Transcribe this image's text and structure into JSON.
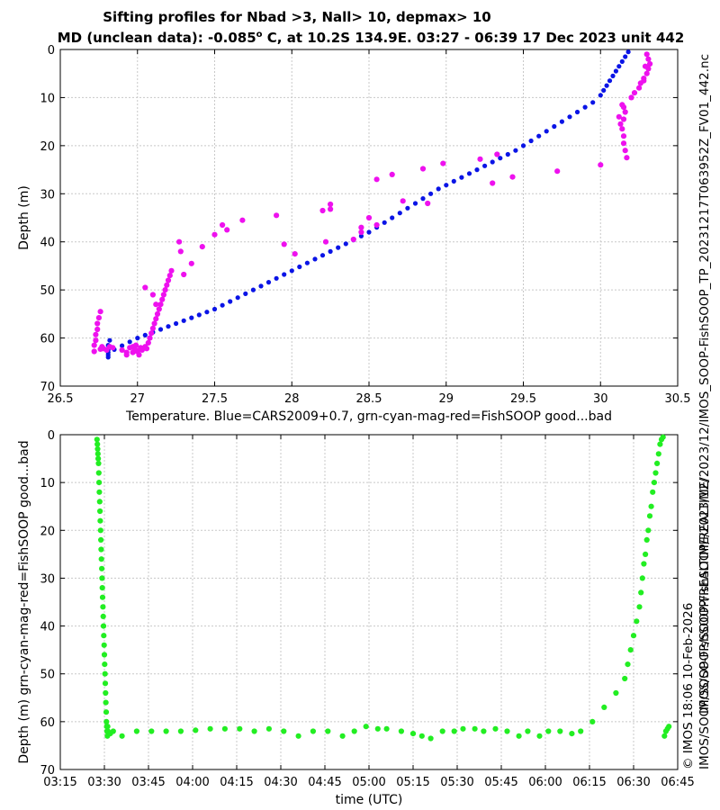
{
  "title_line1": "Sifting profiles for Nbad >3, Nall> 10, depmax> 10",
  "title_line2_prefix": "MD (unclean data): -0.085",
  "title_line2_superscript": "o",
  "title_line2_suffix": " C, at 10.2S 134.9E. 03:27 - 06:39 17 Dec 2023 unit 442",
  "side_label_file": "IMOS_SOOP-FishSOOP_TP_20231217T063952Z_FV01_442.nc",
  "side_label_path": "IMOS/SOOP/SOOP-FishSOOP/REALTIME/2023/12/",
  "side_label_copyright": "© IMOS 18:06 10-Feb-2026",
  "side_label_path2": "IMOS/SOOP/SOOP-FishSOOP/REALTIME/2023/12/",
  "colors": {
    "blue": "#0a14e6",
    "magenta": "#ee11ee",
    "green": "#22ee22"
  },
  "chart_data": [
    {
      "type": "scatter",
      "xlabel": "Temperature. Blue=CARS2009+0.7, grn-cyan-mag-red=FishSOOP good...bad",
      "ylabel": "Depth (m)",
      "xlim": [
        26.5,
        30.5
      ],
      "ylim": [
        70,
        0
      ],
      "x_ticks": [
        "26.5",
        "27",
        "27.5",
        "28",
        "28.5",
        "29",
        "29.5",
        "30",
        "30.5"
      ],
      "y_ticks": [
        "0",
        "10",
        "20",
        "30",
        "40",
        "50",
        "60",
        "70"
      ],
      "grid": true,
      "series": [
        {
          "name": "CARS2009+0.7",
          "color": "blue",
          "x": [
            30.18,
            30.16,
            30.14,
            30.12,
            30.1,
            30.08,
            30.06,
            30.04,
            30.02,
            30.0,
            29.95,
            29.9,
            29.85,
            29.8,
            29.75,
            29.7,
            29.65,
            29.6,
            29.55,
            29.5,
            29.45,
            29.4,
            29.35,
            29.3,
            29.25,
            29.2,
            29.15,
            29.1,
            29.05,
            29.0,
            28.95,
            28.9,
            28.85,
            28.8,
            28.75,
            28.7,
            28.65,
            28.6,
            28.55,
            28.5,
            28.45,
            28.4,
            28.35,
            28.3,
            28.25,
            28.2,
            28.15,
            28.1,
            28.05,
            28.0,
            27.95,
            27.9,
            27.85,
            27.8,
            27.75,
            27.7,
            27.65,
            27.6,
            27.55,
            27.5,
            27.45,
            27.4,
            27.35,
            27.3,
            27.25,
            27.2,
            27.15,
            27.1,
            27.05,
            27.0,
            26.95,
            26.9,
            26.85,
            26.82,
            26.81,
            26.81,
            26.81,
            26.81,
            26.81
          ],
          "y": [
            0.5,
            1.5,
            2.5,
            3.5,
            4.5,
            5.5,
            6.5,
            7.5,
            8.5,
            9.5,
            11.0,
            12.0,
            13.0,
            14.0,
            15.0,
            16.0,
            17.0,
            18.0,
            19.0,
            20.0,
            21.0,
            21.8,
            22.6,
            23.4,
            24.2,
            25.0,
            25.8,
            26.6,
            27.4,
            28.2,
            29.0,
            30.0,
            31.0,
            32.0,
            33.0,
            34.0,
            35.0,
            36.0,
            37.0,
            38.0,
            38.8,
            39.6,
            40.4,
            41.2,
            42.0,
            42.8,
            43.6,
            44.4,
            45.2,
            46.0,
            46.8,
            47.6,
            48.4,
            49.2,
            50.0,
            50.8,
            51.6,
            52.4,
            53.2,
            54.0,
            54.6,
            55.2,
            55.8,
            56.4,
            57.0,
            57.6,
            58.2,
            58.8,
            59.4,
            60.0,
            60.8,
            61.6,
            62.4,
            60.5,
            61.5,
            62.5,
            63.0,
            63.5,
            64.0
          ]
        },
        {
          "name": "FishSOOP",
          "color": "magenta",
          "x": [
            26.72,
            26.72,
            26.73,
            26.73,
            26.74,
            26.74,
            26.75,
            26.76,
            26.76,
            26.77,
            26.78,
            26.8,
            26.82,
            26.84,
            26.9,
            26.93,
            26.95,
            26.97,
            26.98,
            26.99,
            27.0,
            27.01,
            27.02,
            27.03,
            27.05,
            27.06,
            27.07,
            27.08,
            27.09,
            27.1,
            27.11,
            27.12,
            27.13,
            27.14,
            27.15,
            27.16,
            27.17,
            27.18,
            27.19,
            27.2,
            27.21,
            27.22,
            26.93,
            26.97,
            26.99,
            27.3,
            27.35,
            27.42,
            27.5,
            27.55,
            27.68,
            27.58,
            27.28,
            27.27,
            27.9,
            27.95,
            28.02,
            28.2,
            28.25,
            28.25,
            28.22,
            28.45,
            28.4,
            28.45,
            28.5,
            28.55,
            28.65,
            28.85,
            28.98,
            29.22,
            29.33,
            29.3,
            29.43,
            29.72,
            30.0,
            30.12,
            30.13,
            30.14,
            30.15,
            30.15,
            30.16,
            30.17,
            30.16,
            30.15,
            30.14,
            30.15,
            30.2,
            30.22,
            30.25,
            30.26,
            30.28,
            30.3,
            30.31,
            30.32,
            30.31,
            30.3,
            30.29,
            30.28,
            28.72,
            28.88,
            28.55,
            27.05,
            27.1,
            27.12
          ],
          "y": [
            62.8,
            61.5,
            60.5,
            59.3,
            58.2,
            57.0,
            55.8,
            54.5,
            62.3,
            61.8,
            62.2,
            62.5,
            61.8,
            62.0,
            62.5,
            63.0,
            62.0,
            61.8,
            62.2,
            61.5,
            62.8,
            63.5,
            62.0,
            62.5,
            61.8,
            62.2,
            61.0,
            60.0,
            59.0,
            58.0,
            57.0,
            56.0,
            55.0,
            54.0,
            53.0,
            52.0,
            51.0,
            50.0,
            49.0,
            48.0,
            47.0,
            46.0,
            63.5,
            63.0,
            62.5,
            46.8,
            44.5,
            41.0,
            38.5,
            36.5,
            35.5,
            37.5,
            42.0,
            40.0,
            34.5,
            40.5,
            42.5,
            33.5,
            32.2,
            33.2,
            40.0,
            38.0,
            39.5,
            37.0,
            35.0,
            27.0,
            26.0,
            24.8,
            23.7,
            22.8,
            21.8,
            27.8,
            26.5,
            25.3,
            24.0,
            14.0,
            15.5,
            16.5,
            18.0,
            19.5,
            21.0,
            22.5,
            13.0,
            12.0,
            11.5,
            14.5,
            10.0,
            9.0,
            8.0,
            7.0,
            6.0,
            5.0,
            4.0,
            3.0,
            2.0,
            1.0,
            3.5,
            6.5,
            31.5,
            32.0,
            36.5,
            49.5,
            51.0,
            53.0
          ]
        }
      ]
    },
    {
      "type": "scatter",
      "xlabel": "time (UTC)",
      "ylabel": "Depth (m) grn-cyan-mag-red=FishSOOP good...bad",
      "xlim": [
        "03:15",
        "06:45"
      ],
      "ylim": [
        70,
        0
      ],
      "x_ticks": [
        "03:15",
        "03:30",
        "03:45",
        "04:00",
        "04:15",
        "04:30",
        "04:45",
        "05:00",
        "05:15",
        "05:30",
        "05:45",
        "06:00",
        "06:15",
        "06:30",
        "06:45"
      ],
      "y_ticks": [
        "0",
        "10",
        "20",
        "30",
        "40",
        "50",
        "60",
        "70"
      ],
      "grid": true,
      "series": [
        {
          "name": "FishSOOP good",
          "color": "green",
          "x": [
            207.5,
            207.6,
            207.7,
            207.8,
            207.9,
            208.0,
            208.1,
            208.2,
            208.3,
            208.4,
            208.5,
            208.6,
            208.7,
            208.8,
            208.9,
            209.0,
            209.1,
            209.2,
            209.3,
            209.4,
            209.5,
            209.6,
            209.7,
            209.8,
            209.9,
            210.0,
            210.1,
            210.2,
            210.3,
            210.4,
            210.5,
            210.6,
            210.7,
            210.8,
            210.9,
            211.0,
            211.1,
            211.2,
            212.0,
            213.0,
            216.0,
            221.0,
            226.0,
            231.0,
            236.0,
            241.0,
            246.0,
            251.0,
            256.0,
            261.0,
            266.0,
            271.0,
            276.0,
            281.0,
            286.0,
            291.0,
            295.0,
            299.0,
            303.0,
            306.0,
            311.0,
            315.0,
            318.0,
            321.0,
            325.0,
            329.0,
            332.0,
            336.0,
            339.0,
            343.0,
            347.0,
            351.0,
            354.0,
            358.0,
            361.0,
            365.0,
            369.0,
            372.0,
            376.0,
            380.0,
            384.0,
            387.0,
            388.0,
            389.0,
            390.0,
            391.0,
            392.0,
            392.5,
            393.0,
            393.5,
            394.0,
            394.5,
            395.0,
            395.5,
            396.0,
            396.5,
            397.0,
            397.5,
            398.0,
            398.5,
            399.0,
            399.5,
            400.0,
            400.5,
            401.0,
            401.5,
            402.0
          ],
          "y": [
            1,
            2,
            3,
            4,
            5,
            6,
            8,
            10,
            12,
            14,
            16,
            18,
            20,
            22,
            24,
            26,
            28,
            30,
            32,
            34,
            36,
            38,
            40,
            42,
            44,
            46,
            48,
            50,
            52,
            54,
            56,
            58,
            60,
            61,
            62,
            63,
            61,
            62,
            62.5,
            62,
            63,
            62,
            62,
            62,
            62,
            61.8,
            61.5,
            61.5,
            61.5,
            62,
            61.5,
            62,
            63,
            62,
            62,
            63,
            62,
            61,
            61.5,
            61.5,
            62,
            62.5,
            63,
            63.5,
            62,
            62,
            61.5,
            61.5,
            62,
            61.5,
            62,
            63,
            62,
            63,
            62,
            62,
            62.5,
            62,
            60,
            57,
            54,
            51,
            48,
            45,
            42,
            39,
            36,
            33,
            30,
            27,
            25,
            22,
            20,
            17,
            15,
            12,
            10,
            8,
            6,
            4,
            2,
            1,
            0.5,
            63,
            62,
            61.5,
            61
          ]
        }
      ]
    }
  ]
}
